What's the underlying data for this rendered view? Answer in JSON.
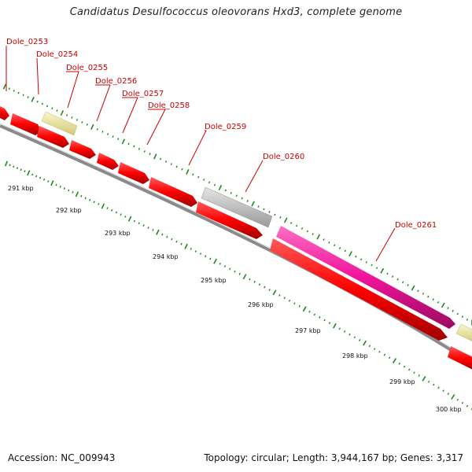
{
  "title": "Candidatus Desulfococcus oleovorans Hxd3, complete genome",
  "footer": {
    "accession": "Accession: NC_009943",
    "summary": "Topology: circular; Length: 3,944,167 bp; Genes: 3,317"
  },
  "colors": {
    "cds": "#ff0000",
    "trna": "#eeea9a",
    "rna": "#c8c8c8",
    "highlight": "#f0149b",
    "backbone": "#8a8a8a",
    "tick": "#1a8a1a",
    "label": "#cc0000"
  },
  "kbp_ticks": [
    "291 kbp",
    "292 kbp",
    "293 kbp",
    "294 kbp",
    "295 kbp",
    "296 kbp",
    "297 kbp",
    "298 kbp",
    "299 kbp",
    "300 kbp"
  ],
  "genes": [
    "Dole_0253",
    "Dole_0254",
    "Dole_0255",
    "Dole_0256",
    "Dole_0257",
    "Dole_0258",
    "Dole_0259",
    "Dole_0260",
    "Dole_0261"
  ]
}
